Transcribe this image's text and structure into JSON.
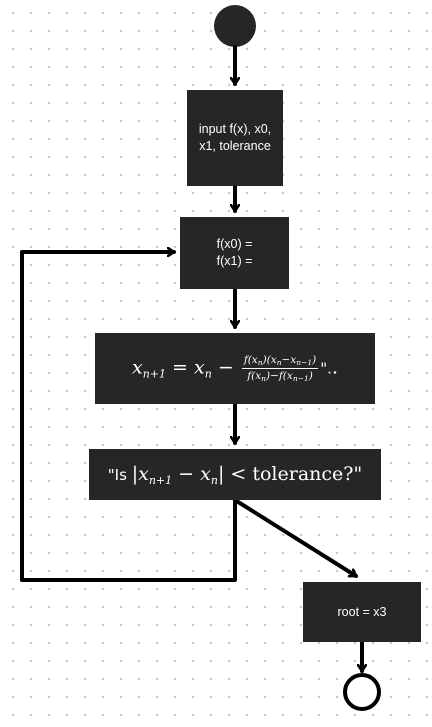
{
  "nodes": {
    "input": {
      "text": "input f(x), x0,\nx1, tolerance"
    },
    "evaluate": {
      "text": "f(x0) =\nf(x1) ="
    },
    "update": {
      "lhs": "x",
      "lhs_sub": "n+1",
      "equals": " = ",
      "term": "x",
      "term_sub": "n",
      "minus": " − ",
      "num": "f(x",
      "num_sub1": "n",
      "num_mid": ")(x",
      "num_sub2": "n",
      "num_mid2": "−x",
      "num_sub3": "n−1",
      "num_end": ")",
      "den": "f(x",
      "den_sub1": "n",
      "den_mid": ")−f(x",
      "den_sub2": "n−1",
      "den_end": ")",
      "tail": "\".",
      "tail_dot": "."
    },
    "check": {
      "open": "\"Is ",
      "bar1": "|",
      "x1": "x",
      "x1_sub": "n+1",
      "minus": " − ",
      "x2": "x",
      "x2_sub": "n",
      "bar2": "|",
      "lt": " < ",
      "word": "tolerance",
      "close": "?\""
    },
    "result": {
      "text": "root = x3"
    }
  },
  "colors": {
    "node_fill": "#262626",
    "node_text": "#ffffff",
    "edge": "#000000",
    "grid_dot": "#c9c9c9",
    "background": "#ffffff"
  },
  "shapes": {
    "start": "filled-circle",
    "end": "ring-circle"
  }
}
